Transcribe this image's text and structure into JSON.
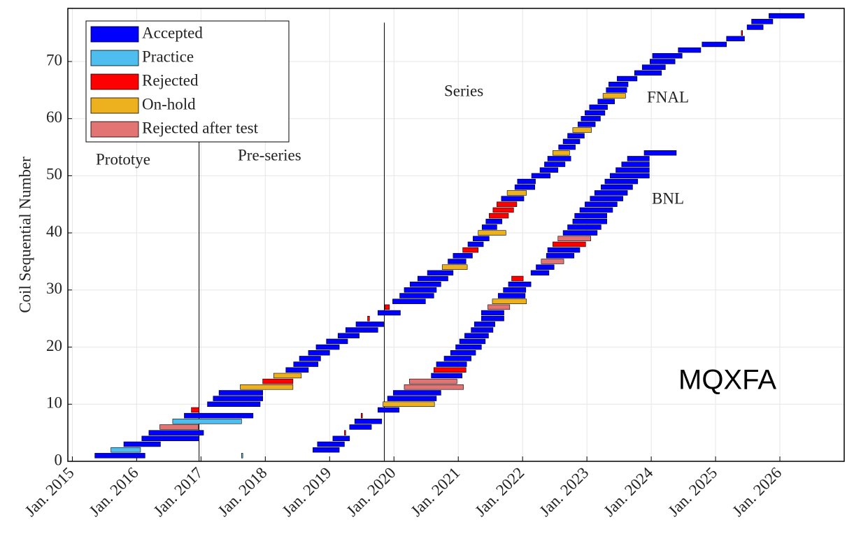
{
  "chart_data": {
    "type": "gantt",
    "y_label": "Coil Sequential Number",
    "xlim": [
      2014.93,
      2027.0
    ],
    "ylim": [
      0,
      79.3
    ],
    "xticks": [
      {
        "value": 2015,
        "label": "Jan. 2015"
      },
      {
        "value": 2016,
        "label": "Jan. 2016"
      },
      {
        "value": 2017,
        "label": "Jan. 2017"
      },
      {
        "value": 2018,
        "label": "Jan. 2018"
      },
      {
        "value": 2019,
        "label": "Jan. 2019"
      },
      {
        "value": 2020,
        "label": "Jan. 2020"
      },
      {
        "value": 2021,
        "label": "Jan. 2021"
      },
      {
        "value": 2022,
        "label": "Jan. 2022"
      },
      {
        "value": 2023,
        "label": "Jan. 2023"
      },
      {
        "value": 2024,
        "label": "Jan. 2024"
      },
      {
        "value": 2025,
        "label": "Jan. 2025"
      },
      {
        "value": 2026,
        "label": "Jan. 2026"
      }
    ],
    "yticks": [
      0,
      10,
      20,
      30,
      40,
      50,
      60,
      70
    ],
    "grid": true,
    "legend": "upper left",
    "vlines": [
      2016.97,
      2019.85
    ],
    "annotations": [
      "Prototye",
      "Pre-series",
      "Series",
      "FNAL",
      "BNL",
      "MQXFA"
    ],
    "series": [
      {
        "name": "Accepted",
        "color": "#0000ff",
        "values": [
          1,
          3,
          4,
          5,
          8,
          10,
          11,
          12,
          16,
          17,
          18,
          19,
          20,
          21,
          22,
          23,
          24,
          26,
          28,
          29,
          30,
          31,
          32,
          33,
          35,
          36,
          38,
          39,
          41,
          42,
          46,
          48,
          49,
          50,
          51,
          52,
          53,
          55,
          56,
          57,
          59,
          60,
          61,
          62,
          63,
          65,
          66,
          67,
          68,
          69,
          70,
          71,
          72,
          73,
          74,
          76,
          77,
          78,
          2,
          3,
          4,
          6,
          7,
          9,
          11,
          12,
          15,
          17,
          18,
          19,
          20,
          21,
          22,
          23,
          24,
          25,
          26,
          29,
          30,
          31,
          33,
          34,
          36,
          37,
          40,
          41,
          42,
          43,
          44,
          45,
          46,
          47,
          48,
          49,
          50,
          51,
          52,
          53,
          54
        ],
        "start": [
          2015.35,
          2015.8,
          2016.08,
          2016.19,
          2016.74,
          2017.1,
          2017.19,
          2017.28,
          2018.32,
          2018.44,
          2018.53,
          2018.67,
          2018.79,
          2018.95,
          2019.13,
          2019.25,
          2019.41,
          2019.75,
          2019.98,
          2020.09,
          2020.16,
          2020.25,
          2020.37,
          2020.52,
          2020.84,
          2020.92,
          2021.15,
          2021.23,
          2021.37,
          2021.43,
          2021.67,
          2021.88,
          2021.92,
          2022.14,
          2022.27,
          2022.34,
          2022.39,
          2022.56,
          2022.63,
          2022.7,
          2022.86,
          2022.91,
          2022.97,
          2023.04,
          2023.17,
          2023.3,
          2023.34,
          2023.47,
          2023.74,
          2023.86,
          2023.98,
          2024.02,
          2024.42,
          2024.79,
          2025.17,
          2025.49,
          2025.56,
          2025.83,
          2018.74,
          2018.81,
          2019.05,
          2019.31,
          2019.39,
          2019.75,
          2019.9,
          2019.99,
          2020.58,
          2020.66,
          2020.78,
          2020.88,
          2020.96,
          2021.02,
          2021.1,
          2021.2,
          2021.25,
          2021.36,
          2021.36,
          2021.62,
          2021.7,
          2021.78,
          2022.13,
          2022.21,
          2022.37,
          2022.39,
          2022.63,
          2022.7,
          2022.78,
          2022.81,
          2022.89,
          2022.97,
          2023.05,
          2023.12,
          2023.22,
          2023.28,
          2023.36,
          2023.45,
          2023.54,
          2023.63,
          2023.89
        ],
        "end": [
          2016.13,
          2016.37,
          2016.97,
          2017.04,
          2017.81,
          2017.92,
          2017.96,
          2017.96,
          2018.67,
          2018.82,
          2018.86,
          2019.0,
          2019.15,
          2019.28,
          2019.46,
          2019.75,
          2019.84,
          2020.1,
          2020.49,
          2020.62,
          2020.66,
          2020.73,
          2020.84,
          2020.92,
          2021.12,
          2021.22,
          2021.39,
          2021.48,
          2021.6,
          2021.68,
          2022.02,
          2022.19,
          2022.2,
          2022.43,
          2022.55,
          2022.66,
          2022.75,
          2022.82,
          2022.89,
          2022.96,
          2023.13,
          2023.21,
          2023.28,
          2023.32,
          2023.43,
          2023.62,
          2023.64,
          2023.78,
          2024.16,
          2024.22,
          2024.37,
          2024.48,
          2024.77,
          2025.17,
          2025.45,
          2025.74,
          2025.89,
          2026.38,
          2019.15,
          2019.23,
          2019.31,
          2019.65,
          2019.81,
          2020.08,
          2020.66,
          2020.73,
          2021.06,
          2021.13,
          2021.2,
          2021.27,
          2021.36,
          2021.42,
          2021.47,
          2021.54,
          2021.57,
          2021.71,
          2021.71,
          2022.04,
          2022.05,
          2022.13,
          2022.41,
          2022.49,
          2022.8,
          2022.89,
          2023.16,
          2023.22,
          2023.31,
          2023.31,
          2023.4,
          2023.47,
          2023.56,
          2023.63,
          2023.71,
          2023.79,
          2023.97,
          2023.97,
          2023.97,
          2023.97,
          2024.39
        ]
      },
      {
        "name": "Practice",
        "color": "#4dbeee",
        "values": [
          2,
          7,
          1
        ],
        "start": [
          2015.6,
          2016.56,
          2017.63
        ],
        "end": [
          2016.06,
          2017.63,
          2017.65
        ]
      },
      {
        "name": "Rejected",
        "color": "#ff0000",
        "values": [
          9,
          14,
          25,
          27,
          37,
          43,
          44,
          45,
          75,
          5,
          8,
          16,
          32,
          38
        ],
        "start": [
          2016.85,
          2017.96,
          2019.59,
          2019.86,
          2021.07,
          2021.48,
          2021.54,
          2021.6,
          2025.4,
          2019.23,
          2019.49,
          2020.62,
          2021.83,
          2022.47
        ],
        "end": [
          2016.97,
          2018.43,
          2019.62,
          2019.93,
          2021.31,
          2021.78,
          2021.86,
          2021.91,
          2025.42,
          2019.25,
          2019.51,
          2021.12,
          2022.01,
          2022.98
        ]
      },
      {
        "name": "On-hold",
        "color": "#edb120",
        "values": [
          13,
          15,
          34,
          40,
          47,
          54,
          58,
          64,
          10,
          28
        ],
        "start": [
          2017.61,
          2018.13,
          2020.75,
          2021.31,
          2021.76,
          2022.47,
          2022.78,
          2023.25,
          2019.83,
          2021.53
        ],
        "end": [
          2018.43,
          2018.56,
          2021.14,
          2021.74,
          2022.06,
          2022.73,
          2023.07,
          2023.6,
          2020.63,
          2022.06
        ]
      },
      {
        "name": "Rejected after test",
        "color": "#e37474",
        "values": [
          6,
          13,
          14,
          27,
          35,
          39
        ],
        "start": [
          2016.36,
          2020.16,
          2020.24,
          2021.46,
          2022.29,
          2022.55
        ],
        "end": [
          2016.96,
          2021.08,
          2020.98,
          2021.8,
          2022.64,
          2023.06
        ]
      }
    ]
  }
}
